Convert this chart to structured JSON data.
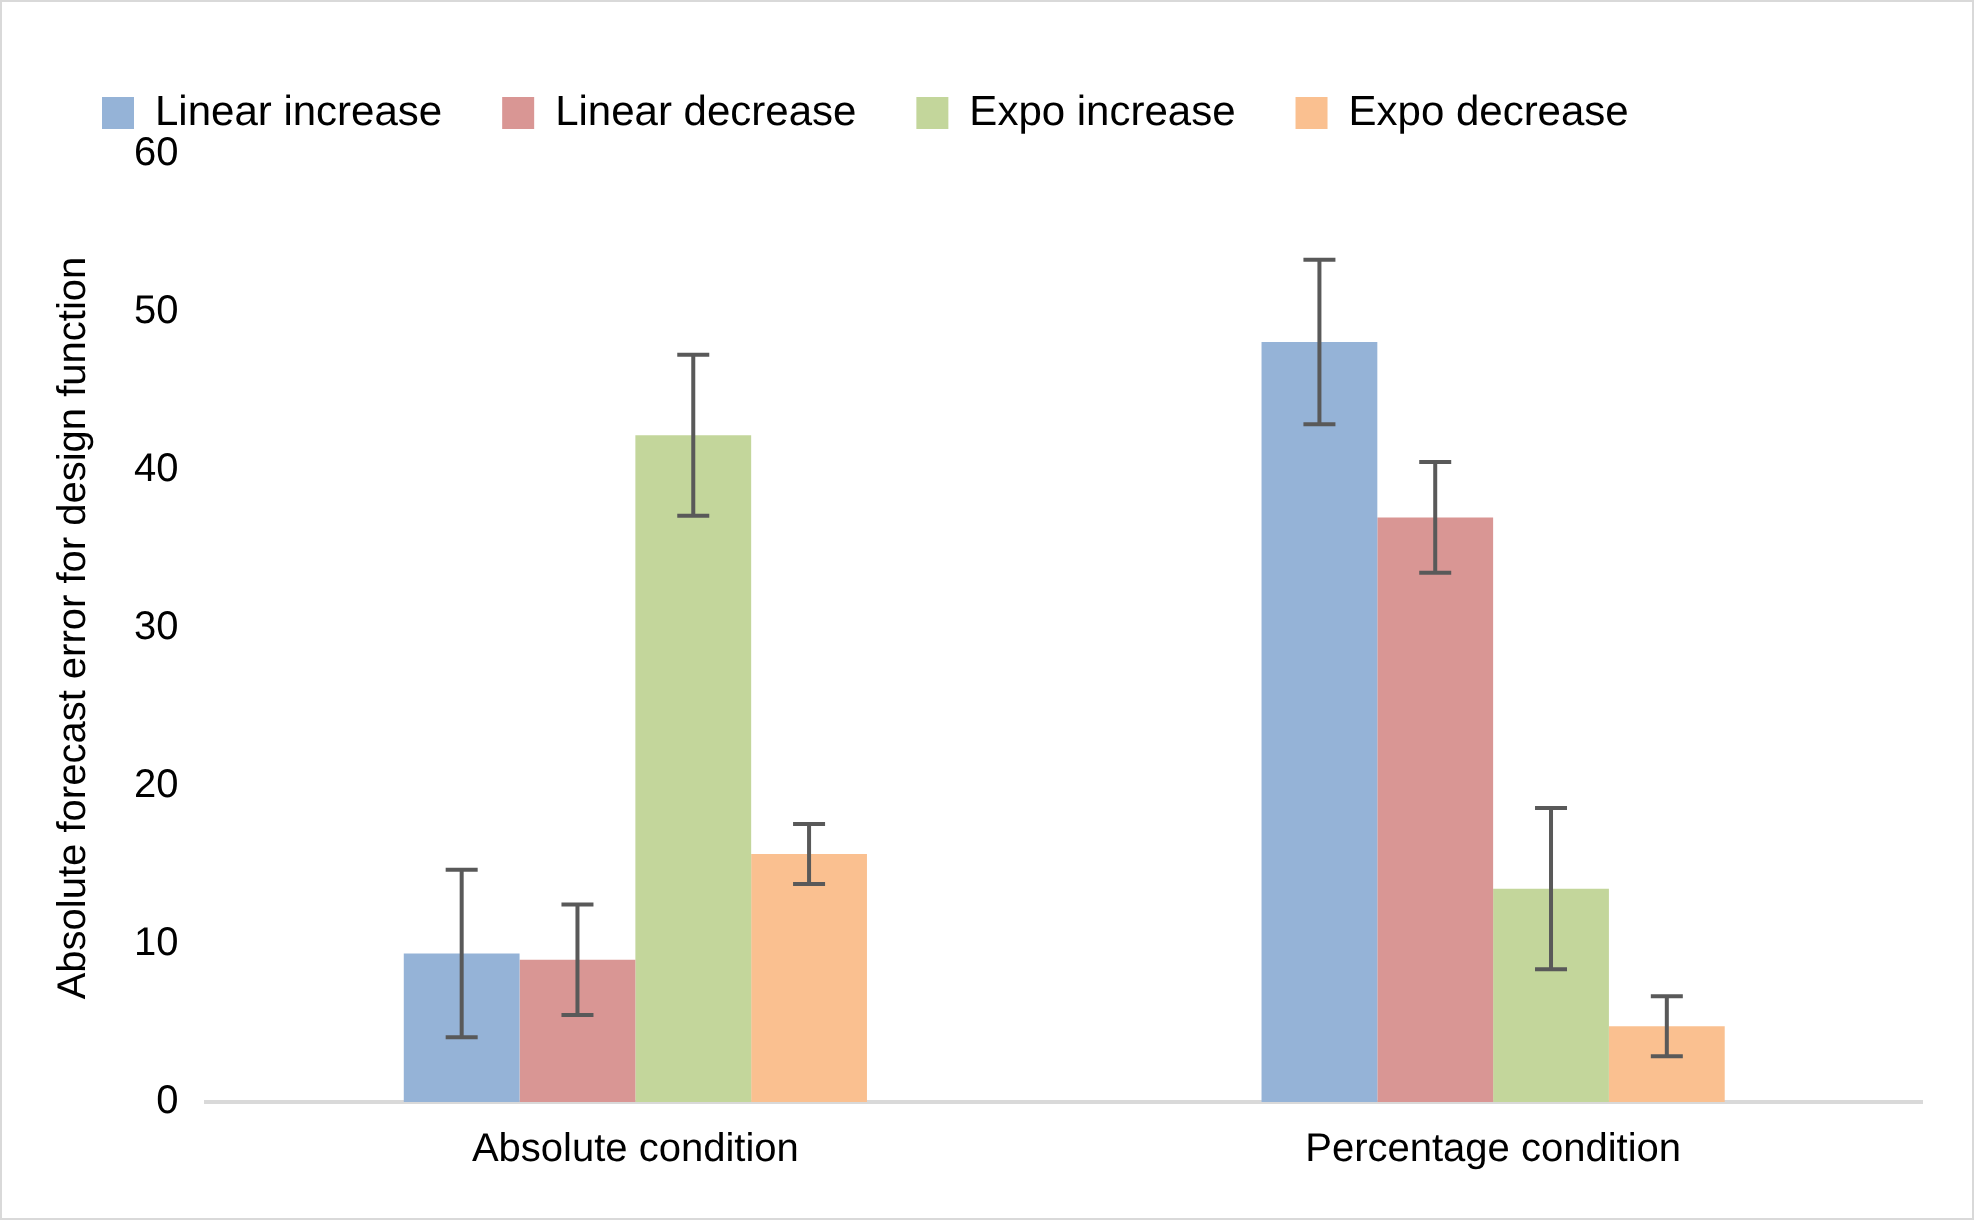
{
  "chart_data": {
    "type": "bar",
    "ylabel": "Absolute forecast error for design function",
    "categories": [
      "Absolute condition",
      "Percentage condition"
    ],
    "series": [
      {
        "name": "Linear increase",
        "color": "#95b3d7",
        "values": [
          9.4,
          48.1
        ],
        "errors": [
          5.3,
          5.2
        ]
      },
      {
        "name": "Linear decrease",
        "color": "#d99694",
        "values": [
          9.0,
          37.0
        ],
        "errors": [
          3.5,
          3.5
        ]
      },
      {
        "name": "Expo increase",
        "color": "#c3d69b",
        "values": [
          42.2,
          13.5
        ],
        "errors": [
          5.1,
          5.1
        ]
      },
      {
        "name": "Expo decrease",
        "color": "#fac090",
        "values": [
          15.7,
          4.8
        ],
        "errors": [
          1.9,
          1.9
        ]
      }
    ],
    "ylim": [
      0,
      60
    ],
    "yticks": [
      0,
      10,
      20,
      30,
      40,
      50,
      60
    ],
    "grid": false,
    "legend": "top"
  }
}
